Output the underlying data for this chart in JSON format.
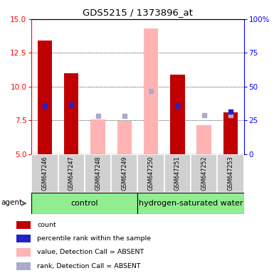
{
  "title": "GDS5215 / 1373896_at",
  "samples": [
    "GSM647246",
    "GSM647247",
    "GSM647248",
    "GSM647249",
    "GSM647250",
    "GSM647251",
    "GSM647252",
    "GSM647253"
  ],
  "count_values": [
    13.4,
    11.0,
    null,
    null,
    null,
    10.9,
    null,
    8.1
  ],
  "count_ranks": [
    8.6,
    8.7,
    null,
    null,
    null,
    8.6,
    null,
    null
  ],
  "absent_values": [
    null,
    null,
    7.55,
    7.45,
    14.3,
    null,
    7.15,
    null
  ],
  "absent_ranks": [
    null,
    null,
    7.85,
    7.85,
    9.7,
    null,
    7.9,
    7.9
  ],
  "count_rank_last": [
    null,
    null,
    null,
    null,
    null,
    null,
    null,
    8.15
  ],
  "ylim_left": [
    5,
    15
  ],
  "ylim_right": [
    0,
    100
  ],
  "y_ticks_left": [
    5,
    7.5,
    10,
    12.5,
    15
  ],
  "y_ticks_right": [
    0,
    25,
    50,
    75,
    100
  ],
  "right_tick_labels": [
    "0",
    "25",
    "50",
    "75",
    "100%"
  ],
  "color_red": "#c00000",
  "color_blue": "#2222cc",
  "color_pink": "#ffb3b3",
  "color_lightblue": "#aaaacc",
  "color_green": "#90ee90",
  "color_gray": "#d0d0d0",
  "control_label": "control",
  "treatment_label": "hydrogen-saturated water",
  "agent_label": "agent",
  "bar_base": 5,
  "legend_labels": [
    "count",
    "percentile rank within the sample",
    "value, Detection Call = ABSENT",
    "rank, Detection Call = ABSENT"
  ]
}
